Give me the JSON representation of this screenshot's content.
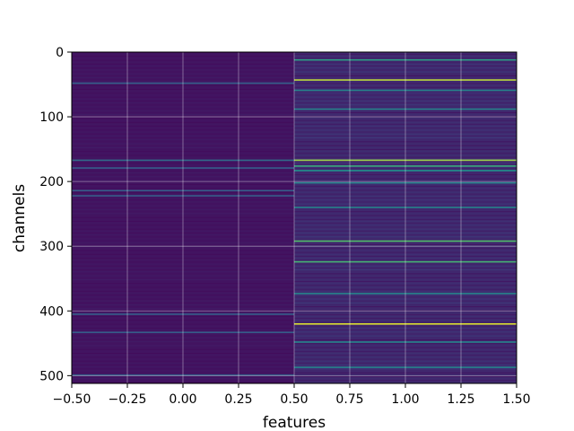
{
  "chart_data": {
    "type": "heatmap",
    "title": "",
    "xlabel": "features",
    "ylabel": "channels",
    "x_extent": [
      -0.5,
      1.5
    ],
    "y_extent": [
      512,
      0
    ],
    "y_inverted": true,
    "rows": 512,
    "columns": 2,
    "colormap": "viridis",
    "grid": true,
    "x_ticks": [
      -0.5,
      -0.25,
      0.0,
      0.25,
      0.5,
      0.75,
      1.0,
      1.25,
      1.5
    ],
    "x_tick_labels": [
      "−0.50",
      "−0.25",
      "0.00",
      "0.25",
      "0.50",
      "0.75",
      "1.00",
      "1.25",
      "1.50"
    ],
    "y_ticks": [
      0,
      100,
      200,
      300,
      400,
      500
    ],
    "y_tick_labels": [
      "0",
      "100",
      "200",
      "300",
      "400",
      "500"
    ],
    "columns_data": [
      {
        "feature": 0,
        "base_value": 0.06,
        "bright_channels": [
          {
            "channel": 47,
            "value": 0.3
          },
          {
            "channel": 166,
            "value": 0.35
          },
          {
            "channel": 178,
            "value": 0.3
          },
          {
            "channel": 213,
            "value": 0.3
          },
          {
            "channel": 221,
            "value": 0.3
          },
          {
            "channel": 404,
            "value": 0.3
          },
          {
            "channel": 432,
            "value": 0.3
          },
          {
            "channel": 498,
            "value": 0.3
          }
        ]
      },
      {
        "feature": 1,
        "base_value": 0.12,
        "bright_channels": [
          {
            "channel": 11,
            "value": 0.55
          },
          {
            "channel": 42,
            "value": 0.9
          },
          {
            "channel": 58,
            "value": 0.45
          },
          {
            "channel": 87,
            "value": 0.45
          },
          {
            "channel": 166,
            "value": 0.85
          },
          {
            "channel": 175,
            "value": 0.6
          },
          {
            "channel": 182,
            "value": 0.5
          },
          {
            "channel": 201,
            "value": 0.45
          },
          {
            "channel": 239,
            "value": 0.45
          },
          {
            "channel": 291,
            "value": 0.7
          },
          {
            "channel": 323,
            "value": 0.65
          },
          {
            "channel": 372,
            "value": 0.45
          },
          {
            "channel": 419,
            "value": 0.95
          },
          {
            "channel": 447,
            "value": 0.45
          },
          {
            "channel": 486,
            "value": 0.45
          }
        ]
      }
    ]
  }
}
